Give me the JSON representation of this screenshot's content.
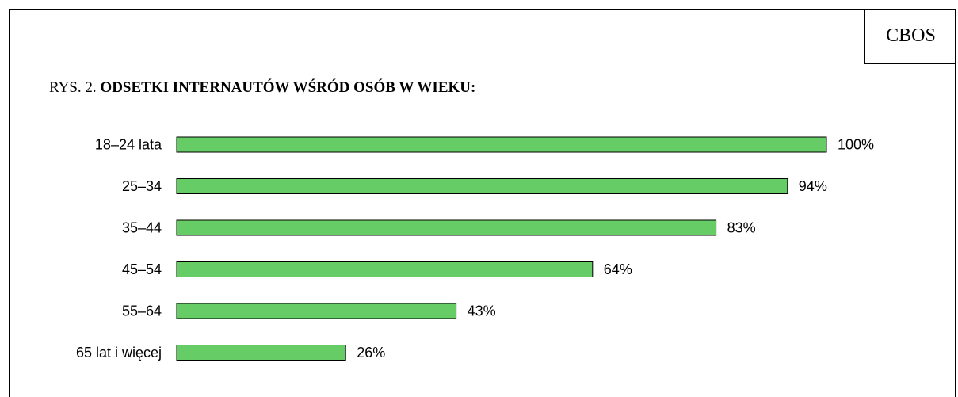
{
  "header": {
    "badge": "CBOS",
    "title_prefix": "RYS. 2.",
    "title_main": "ODSETKI INTERNAUTÓW WŚRÓD OSÓB W WIEKU:"
  },
  "colors": {
    "bar_fill": "#66cc66",
    "bar_stroke": "#000000"
  },
  "chart_data": {
    "type": "bar",
    "orientation": "horizontal",
    "categories": [
      "18–24 lata",
      "25–34",
      "35–44",
      "45–54",
      "55–64",
      "65 lat i więcej"
    ],
    "values": [
      100,
      94,
      83,
      64,
      43,
      26
    ],
    "value_labels": [
      "100%",
      "94%",
      "83%",
      "64%",
      "43%",
      "26%"
    ],
    "xlim": [
      0,
      100
    ],
    "grid": false,
    "legend": "none"
  }
}
